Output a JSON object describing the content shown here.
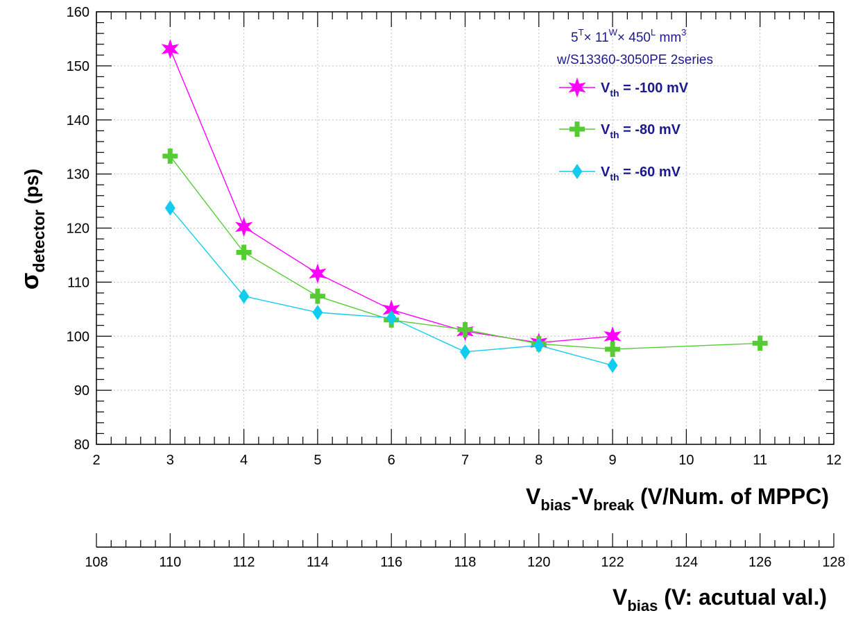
{
  "chart_data": {
    "type": "line",
    "ylabel": {
      "main": "σ",
      "sub": "detector",
      "rest": " (ps)"
    },
    "xlabel": {
      "p1": "V",
      "s1": "bias",
      "p2": "-V",
      "s2": "break",
      "p3": " (V/Num. of MPPC)"
    },
    "x2label": {
      "p1": "V",
      "s1": "bias",
      "p2": " (V: acutual val.)"
    },
    "xlim": [
      2,
      12
    ],
    "ylim": [
      80,
      160
    ],
    "x2lim": [
      108,
      128
    ],
    "x_ticks": [
      "2",
      "3",
      "4",
      "5",
      "6",
      "7",
      "8",
      "9",
      "10",
      "11",
      "12"
    ],
    "y_ticks": [
      "80",
      "90",
      "100",
      "110",
      "120",
      "130",
      "140",
      "150",
      "160"
    ],
    "x2_ticks": [
      "108",
      "110",
      "112",
      "114",
      "116",
      "118",
      "120",
      "122",
      "124",
      "126",
      "128"
    ],
    "grid": true,
    "annotation": {
      "line1": {
        "a": "5",
        "a_sup": "T",
        "b": "× 11",
        "b_sup": "W",
        "c": "× 450",
        "c_sup": "L",
        "d": " mm",
        "d_sup": "3"
      },
      "line2": "w/S13360-3050PE 2series"
    },
    "legend_position": "top-right",
    "series": [
      {
        "name": "V_th = -100 mV",
        "label": {
          "v": "V",
          "sub": "th",
          "rest": " = -100 mV"
        },
        "color": "#ff00ff",
        "marker": "star",
        "x": [
          3,
          4,
          5,
          6,
          7,
          8,
          9
        ],
        "y": [
          153.1,
          120.2,
          111.6,
          104.9,
          100.9,
          98.8,
          100.0
        ]
      },
      {
        "name": "V_th = -80 mV",
        "label": {
          "v": "V",
          "sub": "th",
          "rest": " = -80 mV"
        },
        "color": "#55cc33",
        "marker": "cross",
        "x": [
          3,
          4,
          5,
          6,
          7,
          8,
          9,
          11
        ],
        "y": [
          133.3,
          115.5,
          107.4,
          103.0,
          101.2,
          98.6,
          97.6,
          98.7
        ]
      },
      {
        "name": "V_th = -60 mV",
        "label": {
          "v": "V",
          "sub": "th",
          "rest": " = -60 mV"
        },
        "color": "#11ccee",
        "marker": "diamond",
        "x": [
          3,
          4,
          5,
          6,
          7,
          8,
          9
        ],
        "y": [
          123.7,
          107.4,
          104.4,
          103.4,
          97.1,
          98.3,
          94.6
        ]
      }
    ]
  }
}
